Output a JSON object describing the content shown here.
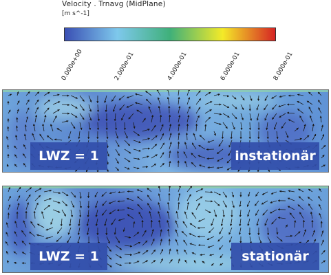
{
  "legend": {
    "title": "Velocity . Trnavg  (MidPlane)",
    "unit": "[m  s^-1]",
    "ticks": [
      "0.000e+00",
      "2.000e-01",
      "4.000e-01",
      "6.000e-01",
      "8.000e-01"
    ],
    "range": [
      0,
      0.8
    ],
    "colormap": [
      "#3a4fb4",
      "#7ec8ec",
      "#3fb07a",
      "#f4ea28",
      "#d62424"
    ]
  },
  "panels": [
    {
      "id": "top",
      "lwz_label": "LWZ = 1",
      "mode_label": "instationär"
    },
    {
      "id": "bottom",
      "lwz_label": "LWZ = 1",
      "mode_label": "stationär"
    }
  ],
  "colors": {
    "field_low": "#3e55bb",
    "field_mid": "#74b0e2",
    "field_high": "#9ed6e8",
    "arrow": "#1a1a1a",
    "label_bg": "#324eaa"
  }
}
